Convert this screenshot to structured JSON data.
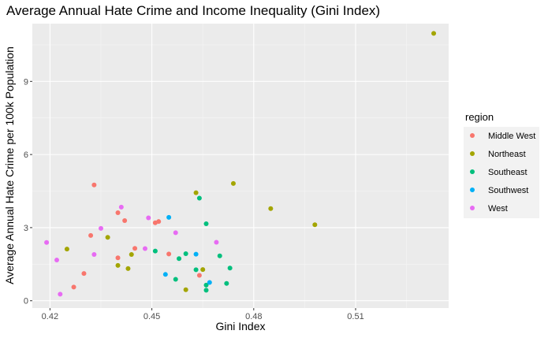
{
  "chart_data": {
    "type": "scatter",
    "title": "Average Annual Hate Crime and Income Inequality (Gini Index)",
    "xlabel": "Gini Index",
    "ylabel": "Average Annual Hate Crime per 100k Population",
    "xlim": [
      0.4148,
      0.5374
    ],
    "ylim": [
      -0.3,
      11.37
    ],
    "x_ticks": [
      0.42,
      0.45,
      0.48,
      0.51
    ],
    "x_tick_labels": [
      "0.42",
      "0.45",
      "0.48",
      "0.51"
    ],
    "y_ticks": [
      0,
      3,
      6,
      9
    ],
    "y_tick_labels": [
      "0",
      "3",
      "6",
      "9"
    ],
    "grid": true,
    "background": "#ebebeb",
    "legend": {
      "title": "region",
      "placement": "right",
      "entries": [
        "Middle West",
        "Northeast",
        "Southeast",
        "Southwest",
        "West"
      ]
    },
    "series": [
      {
        "name": "Middle West",
        "color": "#F8766D",
        "points": [
          [
            0.427,
            0.56
          ],
          [
            0.43,
            1.12
          ],
          [
            0.432,
            2.68
          ],
          [
            0.433,
            4.75
          ],
          [
            0.44,
            3.61
          ],
          [
            0.44,
            1.76
          ],
          [
            0.442,
            3.29
          ],
          [
            0.445,
            2.15
          ],
          [
            0.451,
            3.2
          ],
          [
            0.452,
            3.25
          ],
          [
            0.455,
            1.92
          ],
          [
            0.464,
            1.04
          ]
        ]
      },
      {
        "name": "Northeast",
        "color": "#A3A500",
        "points": [
          [
            0.425,
            2.12
          ],
          [
            0.437,
            2.6
          ],
          [
            0.44,
            1.45
          ],
          [
            0.443,
            1.32
          ],
          [
            0.444,
            1.9
          ],
          [
            0.46,
            0.45
          ],
          [
            0.463,
            4.43
          ],
          [
            0.465,
            1.28
          ],
          [
            0.474,
            4.81
          ],
          [
            0.485,
            3.78
          ],
          [
            0.498,
            3.12
          ],
          [
            0.533,
            10.97
          ]
        ]
      },
      {
        "name": "Southeast",
        "color": "#00BF7D",
        "points": [
          [
            0.451,
            2.04
          ],
          [
            0.457,
            0.88
          ],
          [
            0.458,
            1.73
          ],
          [
            0.46,
            1.93
          ],
          [
            0.463,
            1.27
          ],
          [
            0.464,
            4.21
          ],
          [
            0.466,
            3.16
          ],
          [
            0.466,
            0.64
          ],
          [
            0.466,
            0.43
          ],
          [
            0.47,
            1.84
          ],
          [
            0.472,
            0.71
          ],
          [
            0.473,
            1.34
          ]
        ]
      },
      {
        "name": "Southwest",
        "color": "#00B0F6",
        "points": [
          [
            0.454,
            1.08
          ],
          [
            0.455,
            3.42
          ],
          [
            0.463,
            1.91
          ],
          [
            0.467,
            0.75
          ]
        ]
      },
      {
        "name": "West",
        "color": "#E76BF3",
        "points": [
          [
            0.419,
            2.39
          ],
          [
            0.422,
            1.67
          ],
          [
            0.423,
            0.27
          ],
          [
            0.433,
            1.9
          ],
          [
            0.435,
            2.97
          ],
          [
            0.441,
            3.84
          ],
          [
            0.448,
            2.14
          ],
          [
            0.449,
            3.4
          ],
          [
            0.457,
            2.79
          ],
          [
            0.469,
            2.4
          ]
        ]
      }
    ]
  }
}
